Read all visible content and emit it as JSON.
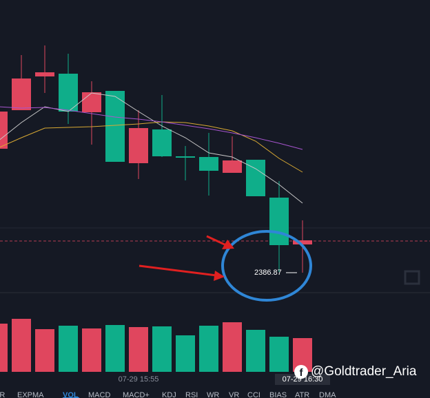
{
  "chart_data": [
    {
      "type": "candlestick",
      "categories": [
        null,
        null,
        null,
        null,
        null,
        null,
        "07-29 15:55",
        null,
        null,
        null,
        null,
        null,
        null,
        "07-29 16:30"
      ],
      "open": [
        2395.87,
        2398.67,
        2401.12,
        2401.32,
        2398.52,
        2400.07,
        2394.82,
        2397.27,
        2395.32,
        2395.27,
        2394.12,
        2395.07,
        2392.32,
        2388.92
      ],
      "high": [
        2399.17,
        2402.67,
        2403.37,
        2402.77,
        2400.77,
        2400.07,
        2398.67,
        2399.77,
        2396.07,
        2397.02,
        2396.77,
        2395.07,
        2393.52,
        2390.67
      ],
      "low": [
        2395.67,
        2398.67,
        2399.92,
        2397.67,
        2396.17,
        2394.92,
        2393.67,
        2395.27,
        2393.57,
        2392.47,
        2394.12,
        2392.42,
        2386.92,
        2386.87
      ],
      "close": [
        2398.57,
        2400.97,
        2401.42,
        2398.57,
        2399.97,
        2394.92,
        2397.37,
        2395.32,
        2395.22,
        2394.27,
        2395.02,
        2392.42,
        2388.87,
        2389.22
      ],
      "up_color": "#e0465e",
      "down_color": "#0fae8a",
      "lines": [
        {
          "color": "#c8c8c8",
          "values": [
            2396.42,
            2397.77,
            2398.92,
            2398.57,
            2399.92,
            2399.67,
            2398.57,
            2397.52,
            2396.67,
            2395.57,
            2395.27,
            2394.42,
            2393.27,
            2391.92
          ]
        },
        {
          "color": "#d9a933",
          "values": [
            2395.92,
            2396.67,
            2397.37,
            2397.42,
            2397.47,
            2397.57,
            2397.67,
            2397.82,
            2397.77,
            2397.52,
            2397.17,
            2396.42,
            2395.17,
            2394.17
          ]
        },
        {
          "color": "#a855d0",
          "values": [
            2398.92,
            2398.82,
            2398.87,
            2398.67,
            2398.42,
            2398.17,
            2398.02,
            2397.82,
            2397.57,
            2397.32,
            2397.02,
            2396.67,
            2396.27,
            2395.82
          ]
        }
      ],
      "price_line": 2389.17,
      "price_line_color": "#e0465e",
      "annotation": "2386.87",
      "ylim": [
        2385.42,
        2406.67
      ]
    },
    {
      "type": "bar",
      "values": [
        70,
        77,
        62,
        67,
        63,
        68,
        65,
        66,
        53,
        67,
        72,
        61,
        51,
        49
      ],
      "ylim": [
        0,
        90
      ]
    }
  ],
  "toolbar": {
    "tabs": [
      "AR",
      "EXPMA",
      "VOL",
      "MACD",
      "MACD+",
      "KDJ",
      "RSI",
      "WR",
      "VR",
      "CCI",
      "BIAS",
      "ATR",
      "DMA"
    ],
    "active": 2
  },
  "watermark": "@Goldtrader_Aria"
}
